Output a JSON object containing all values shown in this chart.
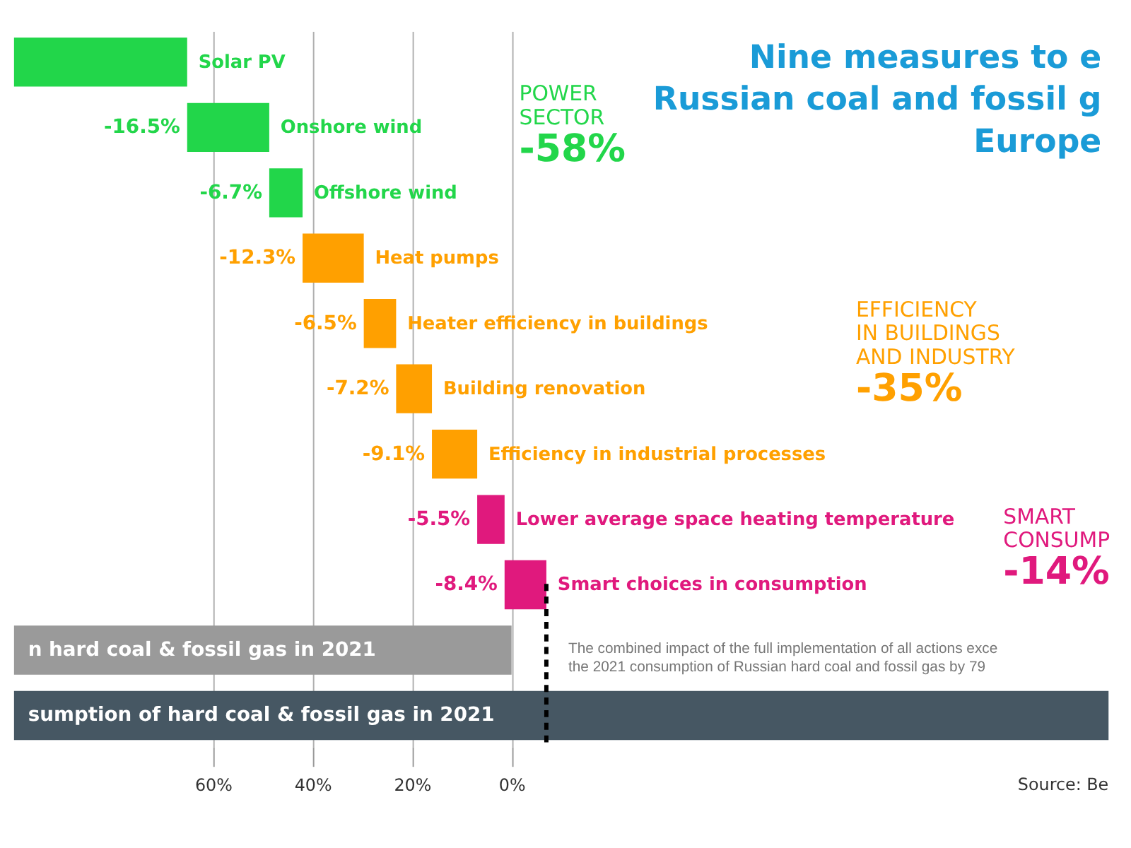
{
  "chart_data": {
    "type": "bar",
    "orientation": "horizontal",
    "title": "Nine measures to e\nRussian coal and fossil g\nEurope",
    "categories": [
      "Solar PV",
      "Onshore wind",
      "Offshore wind",
      "Heat pumps",
      "Heater efficiency in buildings",
      "Building renovation",
      "Efficiency in industrial processes",
      "Lower average space heating temperature",
      "Smart choices in consumption",
      "n hard coal & fossil gas in 2021",
      "sumption of hard coal & fossil gas in 2021"
    ],
    "values": [
      -34.8,
      -16.5,
      -6.7,
      -12.3,
      -6.5,
      -7.2,
      -9.1,
      -5.5,
      -8.4,
      -100,
      -220
    ],
    "base": [
      100,
      65.2,
      48.7,
      42.0,
      29.7,
      23.2,
      16.0,
      6.9,
      1.4,
      100,
      100
    ],
    "value_labels": [
      null,
      "-16.5%",
      "-6.7%",
      "-12.3%",
      "-6.5%",
      "-7.2%",
      "-9.1%",
      "-5.5%",
      "-8.4%",
      null,
      null
    ],
    "colors": [
      "#22d64a",
      "#22d64a",
      "#22d64a",
      "#ffa000",
      "#ffa000",
      "#ffa000",
      "#ffa000",
      "#e0197d",
      "#e0197d",
      "#9a9a9a",
      "#465763"
    ],
    "xlim": [
      100,
      -120
    ],
    "xticks": [
      {
        "value": 60,
        "label": "60%"
      },
      {
        "value": 40,
        "label": "40%"
      },
      {
        "value": 20,
        "label": "20%"
      },
      {
        "value": 0,
        "label": "0%"
      }
    ],
    "grid": "x",
    "ref_lines": [
      {
        "axis": "x",
        "value": -7.0,
        "color": "#000000",
        "line_style": "dashed"
      }
    ],
    "annotations": [
      "POWER\nSECTOR\n-58%",
      "EFFICIENCY\nIN BUILDINGS\nAND INDUSTRY\n-35%",
      "SMART\nCONSUMP\n-14%",
      "The combined impact of the full implementation of all actions exce\nthe 2021 consumption of Russian hard coal and fossil gas by 79",
      "Source: Be"
    ]
  }
}
